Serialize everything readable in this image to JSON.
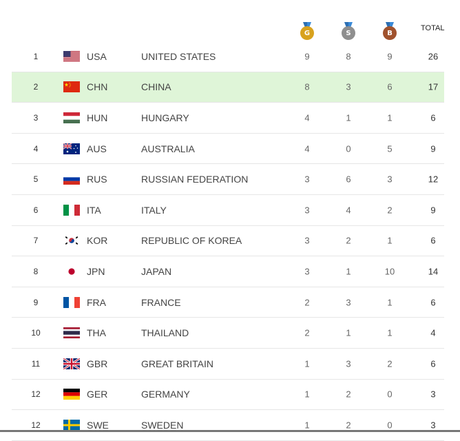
{
  "header": {
    "gold": {
      "letter": "G",
      "color": "#d8a21e",
      "icon": "gold-medal-icon"
    },
    "silver": {
      "letter": "S",
      "color": "#8f8f8f",
      "icon": "silver-medal-icon"
    },
    "bronze": {
      "letter": "B",
      "color": "#a0522d",
      "icon": "bronze-medal-icon"
    },
    "total_label": "TOTAL"
  },
  "highlight_color": "#dff5d8",
  "rows": [
    {
      "rank": "1",
      "flag": "usa-flag-icon",
      "code": "USA",
      "name": "UNITED STATES",
      "gold": "9",
      "silver": "8",
      "bronze": "9",
      "total": "26"
    },
    {
      "rank": "2",
      "flag": "chn-flag-icon",
      "code": "CHN",
      "name": "CHINA",
      "gold": "8",
      "silver": "3",
      "bronze": "6",
      "total": "17",
      "highlight": true
    },
    {
      "rank": "3",
      "flag": "hun-flag-icon",
      "code": "HUN",
      "name": "HUNGARY",
      "gold": "4",
      "silver": "1",
      "bronze": "1",
      "total": "6"
    },
    {
      "rank": "4",
      "flag": "aus-flag-icon",
      "code": "AUS",
      "name": "AUSTRALIA",
      "gold": "4",
      "silver": "0",
      "bronze": "5",
      "total": "9"
    },
    {
      "rank": "5",
      "flag": "rus-flag-icon",
      "code": "RUS",
      "name": "RUSSIAN FEDERATION",
      "gold": "3",
      "silver": "6",
      "bronze": "3",
      "total": "12"
    },
    {
      "rank": "6",
      "flag": "ita-flag-icon",
      "code": "ITA",
      "name": "ITALY",
      "gold": "3",
      "silver": "4",
      "bronze": "2",
      "total": "9"
    },
    {
      "rank": "7",
      "flag": "kor-flag-icon",
      "code": "KOR",
      "name": "REPUBLIC OF KOREA",
      "gold": "3",
      "silver": "2",
      "bronze": "1",
      "total": "6"
    },
    {
      "rank": "8",
      "flag": "jpn-flag-icon",
      "code": "JPN",
      "name": "JAPAN",
      "gold": "3",
      "silver": "1",
      "bronze": "10",
      "total": "14"
    },
    {
      "rank": "9",
      "flag": "fra-flag-icon",
      "code": "FRA",
      "name": "FRANCE",
      "gold": "2",
      "silver": "3",
      "bronze": "1",
      "total": "6"
    },
    {
      "rank": "10",
      "flag": "tha-flag-icon",
      "code": "THA",
      "name": "THAILAND",
      "gold": "2",
      "silver": "1",
      "bronze": "1",
      "total": "4"
    },
    {
      "rank": "11",
      "flag": "gbr-flag-icon",
      "code": "GBR",
      "name": "GREAT BRITAIN",
      "gold": "1",
      "silver": "3",
      "bronze": "2",
      "total": "6"
    },
    {
      "rank": "12",
      "flag": "ger-flag-icon",
      "code": "GER",
      "name": "GERMANY",
      "gold": "1",
      "silver": "2",
      "bronze": "0",
      "total": "3"
    },
    {
      "rank": "12",
      "flag": "swe-flag-icon",
      "code": "SWE",
      "name": "SWEDEN",
      "gold": "1",
      "silver": "2",
      "bronze": "0",
      "total": "3"
    }
  ]
}
